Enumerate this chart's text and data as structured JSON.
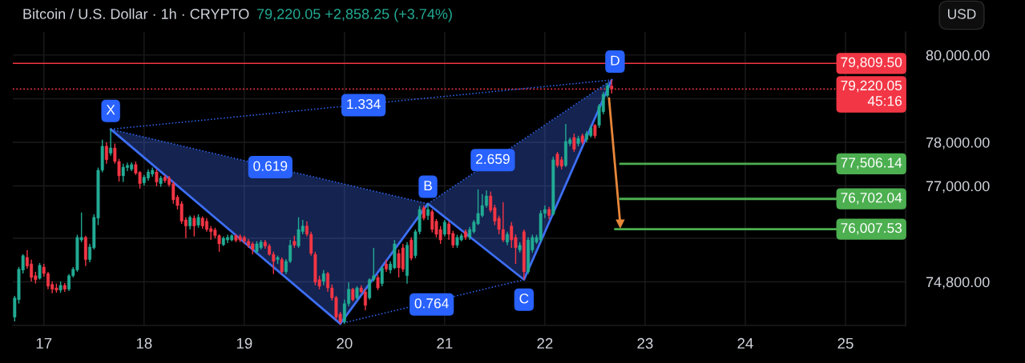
{
  "chart_data": {
    "type": "candlestick",
    "title": "Bitcoin / U.S. Dollar · 1h · CRYPTO",
    "subtitle": "79,220.05 +2,858.25 (+3.74%)",
    "x": [
      16.7083,
      16.75,
      16.7917,
      16.8333,
      16.875,
      16.9167,
      16.9583,
      17,
      17.0417,
      17.0833,
      17.125,
      17.1667,
      17.2083,
      17.25,
      17.2917,
      17.3333,
      17.375,
      17.4167,
      17.4583,
      17.5,
      17.5417,
      17.5833,
      17.625,
      17.6667,
      17.7083,
      17.75,
      17.7917,
      17.8333,
      17.875,
      17.9167,
      17.9583,
      18,
      18.0417,
      18.0833,
      18.125,
      18.1667,
      18.2083,
      18.25,
      18.2917,
      18.3333,
      18.375,
      18.4167,
      18.4583,
      18.5,
      18.5417,
      18.5833,
      18.625,
      18.6667,
      18.7083,
      18.75,
      18.7917,
      18.8333,
      18.875,
      18.9167,
      18.9583,
      19,
      19.0417,
      19.0833,
      19.125,
      19.1667,
      19.2083,
      19.25,
      19.2917,
      19.3333,
      19.375,
      19.4167,
      19.4583,
      19.5,
      19.5417,
      19.5833,
      19.625,
      19.6667,
      19.7083,
      19.75,
      19.7917,
      19.8333,
      19.875,
      19.9167,
      19.9583,
      20,
      20.0417,
      20.0833,
      20.125,
      20.1667,
      20.2083,
      20.25,
      20.2917,
      20.3333,
      20.375,
      20.4167,
      20.4583,
      20.5,
      20.5417,
      20.5833,
      20.625,
      20.6667,
      20.7083,
      20.75,
      20.7917,
      20.8333,
      20.875,
      20.9167,
      20.9583,
      21,
      21.0417,
      21.0833,
      21.125,
      21.1667,
      21.2083,
      21.25,
      21.2917,
      21.3333,
      21.375,
      21.4167,
      21.4583,
      21.5,
      21.5417,
      21.5833,
      21.625,
      21.6667,
      21.7083,
      21.75,
      21.7917,
      21.8333,
      21.875,
      21.9167,
      21.9583,
      22,
      22.0417,
      22.0833,
      22.125,
      22.1667,
      22.2083,
      22.25,
      22.2917,
      22.3333,
      22.375,
      22.4167,
      22.4583,
      22.5,
      22.5417,
      22.5833,
      22.625,
      22.6667
    ],
    "ohlc": [
      [
        73990,
        74480,
        73890,
        74430
      ],
      [
        74390,
        75140,
        74300,
        75090
      ],
      [
        75070,
        75430,
        74990,
        75400
      ],
      [
        75360,
        75530,
        75100,
        75160
      ],
      [
        75210,
        75310,
        74810,
        74900
      ],
      [
        74940,
        75030,
        74760,
        74850
      ],
      [
        74880,
        75230,
        74850,
        75180
      ],
      [
        75140,
        75210,
        74920,
        74990
      ],
      [
        74990,
        75030,
        74630,
        74700
      ],
      [
        74740,
        74810,
        74540,
        74630
      ],
      [
        74660,
        74760,
        74550,
        74610
      ],
      [
        74610,
        74810,
        74550,
        74720
      ],
      [
        74720,
        74770,
        74570,
        74630
      ],
      [
        74630,
        74980,
        74590,
        74940
      ],
      [
        74940,
        75140,
        74900,
        75090
      ],
      [
        75070,
        75880,
        75030,
        75820
      ],
      [
        75760,
        76390,
        75710,
        75820
      ],
      [
        75820,
        75860,
        75160,
        75310
      ],
      [
        75310,
        75670,
        75250,
        75600
      ],
      [
        75580,
        76350,
        75540,
        76280
      ],
      [
        76260,
        77420,
        76100,
        77360
      ],
      [
        77360,
        78060,
        77310,
        77910
      ],
      [
        77910,
        78000,
        77510,
        77600
      ],
      [
        77750,
        78300,
        77690,
        77870
      ],
      [
        77870,
        77970,
        77510,
        77560
      ],
      [
        77560,
        77620,
        77100,
        77230
      ],
      [
        77230,
        77510,
        77090,
        77430
      ],
      [
        77420,
        77530,
        77340,
        77470
      ],
      [
        77380,
        77540,
        77340,
        77490
      ],
      [
        77490,
        77560,
        77250,
        77290
      ],
      [
        77310,
        77340,
        76940,
        77050
      ],
      [
        77070,
        77250,
        77010,
        77200
      ],
      [
        77180,
        77380,
        77120,
        77320
      ],
      [
        77270,
        77420,
        77210,
        77360
      ],
      [
        77320,
        77380,
        76990,
        77090
      ],
      [
        77050,
        77230,
        76980,
        77180
      ],
      [
        77200,
        77250,
        77070,
        77120
      ],
      [
        77180,
        77230,
        76980,
        77030
      ],
      [
        77050,
        77100,
        76590,
        76680
      ],
      [
        76740,
        76790,
        76460,
        76550
      ],
      [
        76590,
        76650,
        76130,
        76190
      ],
      [
        76220,
        76280,
        75800,
        76080
      ],
      [
        76080,
        76320,
        76000,
        76280
      ],
      [
        76260,
        76320,
        75840,
        76080
      ],
      [
        76100,
        76350,
        76040,
        76280
      ],
      [
        76260,
        76300,
        76020,
        76080
      ],
      [
        76190,
        76260,
        75950,
        76000
      ],
      [
        76020,
        76080,
        75760,
        75950
      ],
      [
        75990,
        76040,
        75800,
        75860
      ],
      [
        75860,
        75890,
        75490,
        75670
      ],
      [
        75650,
        75840,
        75620,
        75800
      ],
      [
        75760,
        75880,
        75690,
        75820
      ],
      [
        75760,
        75890,
        75730,
        75860
      ],
      [
        75860,
        75890,
        75710,
        75750
      ],
      [
        75840,
        75890,
        75710,
        75760
      ],
      [
        75820,
        75860,
        75670,
        75730
      ],
      [
        75730,
        75780,
        75580,
        75640
      ],
      [
        75670,
        75710,
        75430,
        75540
      ],
      [
        75490,
        75730,
        75450,
        75670
      ],
      [
        75580,
        75760,
        75540,
        75710
      ],
      [
        75710,
        75760,
        75560,
        75620
      ],
      [
        75620,
        75670,
        75400,
        75430
      ],
      [
        75430,
        75490,
        74980,
        75270
      ],
      [
        75310,
        75400,
        75210,
        75360
      ],
      [
        75310,
        75360,
        74980,
        75030
      ],
      [
        75030,
        75320,
        74980,
        75270
      ],
      [
        75270,
        75760,
        75230,
        75640
      ],
      [
        75730,
        75860,
        75580,
        75640
      ],
      [
        75620,
        76280,
        75580,
        76000
      ],
      [
        75950,
        76220,
        75890,
        76080
      ],
      [
        76080,
        76190,
        75840,
        75890
      ],
      [
        75890,
        75950,
        75400,
        75450
      ],
      [
        75430,
        75490,
        74720,
        74790
      ],
      [
        74850,
        74940,
        74630,
        74700
      ],
      [
        74810,
        75070,
        74720,
        74990
      ],
      [
        74990,
        75030,
        74570,
        74660
      ],
      [
        74660,
        74740,
        74370,
        74430
      ],
      [
        74440,
        74480,
        73930,
        73990
      ],
      [
        74060,
        74110,
        73840,
        73880
      ],
      [
        73880,
        74390,
        73840,
        74300
      ],
      [
        74300,
        74790,
        74240,
        74630
      ],
      [
        74630,
        74660,
        74350,
        74390
      ],
      [
        74430,
        74700,
        74390,
        74660
      ],
      [
        74660,
        74720,
        74540,
        74570
      ],
      [
        74570,
        74630,
        74150,
        74260
      ],
      [
        74430,
        74880,
        74390,
        74850
      ],
      [
        74850,
        75580,
        74810,
        74940
      ],
      [
        74900,
        74960,
        74610,
        74660
      ],
      [
        74760,
        75160,
        74700,
        75120
      ],
      [
        75210,
        75310,
        75030,
        75090
      ],
      [
        75070,
        75270,
        74990,
        75210
      ],
      [
        75120,
        75760,
        75090,
        75670
      ],
      [
        75450,
        75540,
        74900,
        75120
      ],
      [
        75580,
        75670,
        75030,
        75090
      ],
      [
        74940,
        75710,
        74760,
        75640
      ],
      [
        75760,
        75820,
        75290,
        75340
      ],
      [
        75400,
        76000,
        75340,
        75950
      ],
      [
        75950,
        76540,
        75890,
        76460
      ],
      [
        76500,
        76550,
        76210,
        76260
      ],
      [
        76320,
        76590,
        76220,
        76460
      ],
      [
        76410,
        76460,
        75930,
        76000
      ],
      [
        76190,
        76240,
        75820,
        75890
      ],
      [
        76000,
        76080,
        75670,
        75760
      ],
      [
        75890,
        76220,
        75840,
        76170
      ],
      [
        76130,
        76190,
        75760,
        75890
      ],
      [
        75910,
        75970,
        75580,
        75640
      ],
      [
        75640,
        75880,
        75580,
        75820
      ],
      [
        75760,
        75910,
        75730,
        75860
      ],
      [
        75950,
        76000,
        75760,
        75820
      ],
      [
        75820,
        76060,
        75760,
        76000
      ],
      [
        75950,
        76220,
        75910,
        76170
      ],
      [
        76130,
        76920,
        76100,
        76370
      ],
      [
        76320,
        76810,
        76280,
        76550
      ],
      [
        76550,
        76900,
        76500,
        76770
      ],
      [
        76770,
        76870,
        76390,
        76440
      ],
      [
        76500,
        76570,
        76100,
        76190
      ],
      [
        76260,
        76320,
        75890,
        76000
      ],
      [
        76000,
        76630,
        75710,
        75760
      ],
      [
        75710,
        75950,
        75640,
        75890
      ],
      [
        76080,
        76170,
        75580,
        75760
      ],
      [
        75820,
        75890,
        75210,
        75580
      ],
      [
        75530,
        75710,
        75470,
        75640
      ],
      [
        75950,
        76000,
        74850,
        75030
      ],
      [
        75030,
        75820,
        74980,
        75760
      ],
      [
        75530,
        75880,
        75470,
        75820
      ],
      [
        75710,
        75880,
        75670,
        75820
      ],
      [
        75760,
        76440,
        75710,
        76370
      ],
      [
        76370,
        76550,
        76260,
        76460
      ],
      [
        76460,
        76520,
        76240,
        76320
      ],
      [
        76350,
        77670,
        76320,
        77600
      ],
      [
        77730,
        77780,
        77420,
        77470
      ],
      [
        77600,
        77670,
        77380,
        77450
      ],
      [
        77470,
        78420,
        77430,
        78020
      ],
      [
        77970,
        78110,
        77910,
        78060
      ],
      [
        78110,
        78200,
        77780,
        77840
      ],
      [
        77970,
        78150,
        77910,
        78090
      ],
      [
        78150,
        78200,
        77950,
        78000
      ],
      [
        78060,
        78260,
        78000,
        78200
      ],
      [
        78150,
        78390,
        78110,
        78330
      ],
      [
        78390,
        78420,
        78090,
        78150
      ],
      [
        78390,
        78880,
        78330,
        78830
      ],
      [
        78700,
        79160,
        78640,
        79100
      ],
      [
        79070,
        79360,
        79030,
        79300
      ],
      [
        79290,
        79430,
        79120,
        79220
      ]
    ],
    "colors": [
      "#22ab94",
      "#22ab94",
      "#22ab94",
      "#f23645",
      "#f23645",
      "#f23645",
      "#22ab94",
      "#f23645",
      "#f23645",
      "#f23645",
      "#f23645",
      "#22ab94",
      "#f23645",
      "#22ab94",
      "#22ab94",
      "#22ab94",
      "#22ab94",
      "#f23645",
      "#22ab94",
      "#22ab94",
      "#22ab94",
      "#22ab94",
      "#f23645",
      "#22ab94",
      "#f23645",
      "#f23645",
      "#22ab94",
      "#22ab94",
      "#22ab94",
      "#f23645",
      "#f23645",
      "#22ab94",
      "#22ab94",
      "#22ab94",
      "#f23645",
      "#22ab94",
      "#f23645",
      "#f23645",
      "#f23645",
      "#f23645",
      "#f23645",
      "#f23645",
      "#22ab94",
      "#f23645",
      "#22ab94",
      "#f23645",
      "#f23645",
      "#f23645",
      "#f23645",
      "#f23645",
      "#22ab94",
      "#22ab94",
      "#22ab94",
      "#f23645",
      "#f23645",
      "#f23645",
      "#f23645",
      "#f23645",
      "#22ab94",
      "#22ab94",
      "#f23645",
      "#f23645",
      "#f23645",
      "#22ab94",
      "#f23645",
      "#22ab94",
      "#22ab94",
      "#f23645",
      "#22ab94",
      "#22ab94",
      "#f23645",
      "#f23645",
      "#f23645",
      "#f23645",
      "#22ab94",
      "#f23645",
      "#f23645",
      "#f23645",
      "#f23645",
      "#22ab94",
      "#22ab94",
      "#f23645",
      "#22ab94",
      "#f23645",
      "#f23645",
      "#22ab94",
      "#22ab94",
      "#f23645",
      "#22ab94",
      "#f23645",
      "#22ab94",
      "#22ab94",
      "#f23645",
      "#f23645",
      "#22ab94",
      "#f23645",
      "#22ab94",
      "#22ab94",
      "#f23645",
      "#22ab94",
      "#f23645",
      "#f23645",
      "#f23645",
      "#22ab94",
      "#f23645",
      "#f23645",
      "#22ab94",
      "#22ab94",
      "#f23645",
      "#22ab94",
      "#22ab94",
      "#22ab94",
      "#22ab94",
      "#22ab94",
      "#f23645",
      "#f23645",
      "#f23645",
      "#f23645",
      "#22ab94",
      "#f23645",
      "#f23645",
      "#22ab94",
      "#f23645",
      "#22ab94",
      "#22ab94",
      "#22ab94",
      "#22ab94",
      "#22ab94",
      "#f23645",
      "#22ab94",
      "#f23645",
      "#f23645",
      "#22ab94",
      "#22ab94",
      "#f23645",
      "#22ab94",
      "#f23645",
      "#22ab94",
      "#22ab94",
      "#f23645",
      "#22ab94",
      "#22ab94",
      "#22ab94",
      "#f23645"
    ],
    "series": [
      {
        "type": "line",
        "color": "#2f66f5",
        "line_style": "dotted",
        "x": [
          17.6667,
          20.8333
        ],
        "values": [
          78300,
          76590
        ]
      },
      {
        "type": "line",
        "color": "#2f66f5",
        "line_style": "dotted",
        "x": [
          20.8333,
          22.6667
        ],
        "values": [
          76590,
          79430
        ]
      },
      {
        "type": "line",
        "color": "#2f66f5",
        "line_style": "dotted",
        "x": [
          17.6667,
          22.6667
        ],
        "values": [
          78300,
          79430
        ]
      },
      {
        "type": "line",
        "color": "#2f66f5",
        "line_style": "dotted",
        "x": [
          19.9583,
          21.7917
        ],
        "values": [
          73840,
          74850
        ]
      },
      {
        "type": "line",
        "color": "#3d6ef5",
        "line_style": "solid",
        "x": [
          17.6667,
          19.9583,
          20.8333,
          21.7917,
          22.6667
        ],
        "values": [
          78300,
          73840,
          76590,
          74850,
          79430
        ],
        "lower": [
          78300,
          73840,
          76590,
          74850,
          79430
        ],
        "upper": [
          78300,
          77060,
          76590,
          78070,
          79430
        ]
      },
      {
        "type": "line",
        "color": "#e8873a",
        "line_style": "solid",
        "marker": "triangle",
        "x": [
          22.64,
          22.752
        ],
        "values": [
          79010,
          76130
        ]
      },
      {
        "type": "line",
        "color": "#4caf50",
        "line_style": "solid",
        "x": [
          22.752,
          25.6
        ],
        "values": [
          77506.14,
          77506.14
        ],
        "value_labels": [
          null,
          "77,506.14"
        ]
      },
      {
        "type": "line",
        "color": "#4caf50",
        "line_style": "solid",
        "x": [
          22.752,
          25.6
        ],
        "values": [
          76702.04,
          76702.04
        ],
        "value_labels": [
          null,
          "76,702.04"
        ]
      },
      {
        "type": "line",
        "color": "#4caf50",
        "line_style": "solid",
        "x": [
          22.7,
          25.6
        ],
        "values": [
          76007.53,
          76007.53
        ],
        "value_labels": [
          null,
          "76,007.53"
        ]
      }
    ],
    "ref_lines": [
      {
        "axis": "y",
        "value": 79809.5,
        "label": "79,809.50",
        "color": "#f23645",
        "line_style": "solid"
      },
      {
        "axis": "y",
        "value": 79220.05,
        "label": "79,220.05\n45:16",
        "color": "#f23645",
        "line_style": "dotted"
      }
    ],
    "annotations": [
      {
        "text": "X",
        "x": 17.6667,
        "y": 78720
      },
      {
        "text": "B",
        "x": 20.8333,
        "y": 76980
      },
      {
        "text": "C",
        "x": 21.7917,
        "y": 74390
      },
      {
        "text": "D",
        "x": 22.7,
        "y": 79850
      },
      {
        "text": "1.334",
        "x": 20.19,
        "y": 78850
      },
      {
        "text": "0.619",
        "x": 19.26,
        "y": 77430
      },
      {
        "text": "2.659",
        "x": 21.48,
        "y": 77590
      },
      {
        "text": "0.764",
        "x": 20.87,
        "y": 74280
      },
      "USD"
    ],
    "xlim": [
      16.69,
      25.6
    ],
    "ylim": [
      73800,
      80530
    ],
    "xticks": [
      17,
      18,
      19,
      20,
      21,
      22,
      23,
      24,
      25
    ],
    "yticks": [
      {
        "value": 80000,
        "label": "80,000.00"
      },
      {
        "value": 79000,
        "label": null
      },
      {
        "value": 78000,
        "label": "78,000.00"
      },
      {
        "value": 77000,
        "label": "77,000.00"
      },
      {
        "value": 75800,
        "label": null
      },
      {
        "value": 74800,
        "label": "74,800.00"
      }
    ],
    "grid": true
  }
}
